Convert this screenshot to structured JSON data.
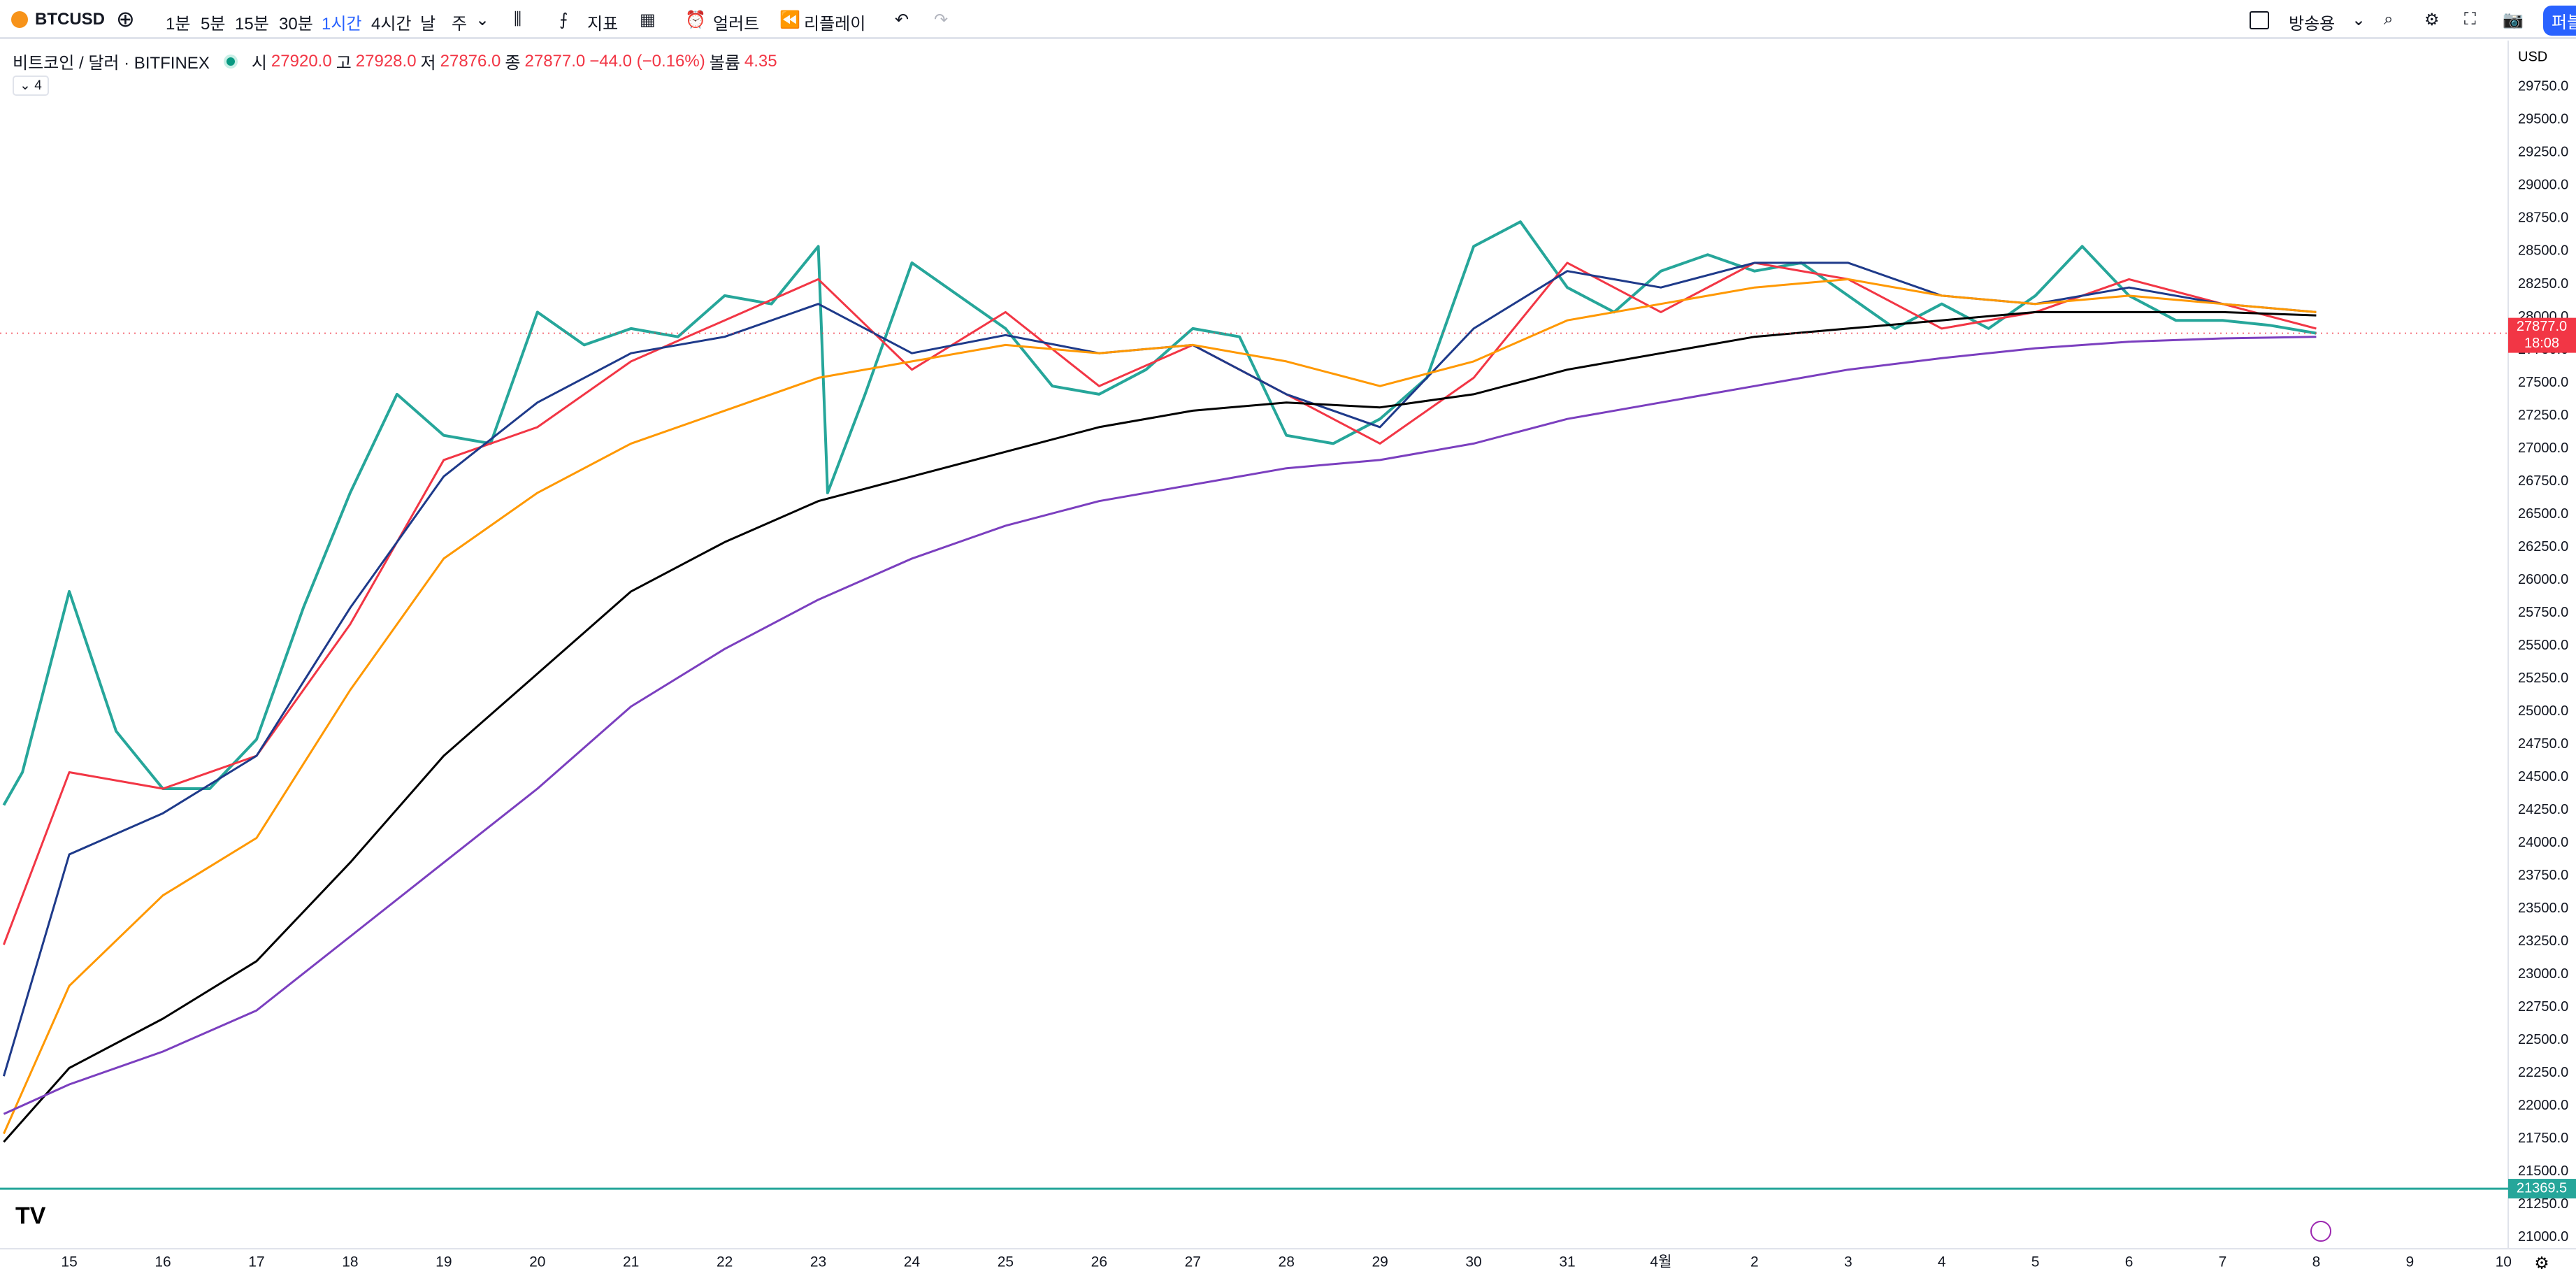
{
  "toolbar": {
    "symbol": "BTCUSD",
    "intervals": [
      "1분",
      "5분",
      "15분",
      "30분",
      "1시간",
      "4시간",
      "날",
      "주"
    ],
    "indicators": "지표",
    "alert": "얼러트",
    "replay": "리플레이",
    "layout": "방송용",
    "publish": "퍼블"
  },
  "legend": {
    "title": "비트코인 / 달러 · BITFINEX",
    "open_label": "시",
    "open": "27920.0",
    "high_label": "고",
    "high": "27928.0",
    "low_label": "저",
    "low": "27876.0",
    "close_label": "종",
    "close": "27877.0",
    "change": "−44.0 (−0.16%)",
    "volume_label": "볼륨",
    "volume": "4.35",
    "indicator_count": "4"
  },
  "chart_data": {
    "type": "line",
    "currency": "USD",
    "x": [
      -0.7,
      0,
      1,
      2,
      3,
      4,
      5,
      6,
      7,
      8,
      9,
      10,
      11,
      12,
      13,
      14,
      15,
      16,
      17,
      18,
      19,
      20,
      21,
      22,
      23,
      24
    ],
    "series": [
      {
        "color": "#26a69a",
        "x": [
          -0.7,
          -0.5,
          0,
          0.5,
          1,
          1.5,
          2,
          2.5,
          3,
          3.5,
          4,
          4.5,
          5,
          5.5,
          6,
          6.5,
          7,
          7.5,
          8,
          8.1,
          8.5,
          9,
          9.5,
          10,
          10.5,
          11,
          11.5,
          12,
          12.5,
          13,
          13.5,
          14,
          14.5,
          15,
          15.5,
          16,
          16.5,
          17,
          17.5,
          18,
          18.5,
          19,
          19.5,
          20,
          20.5,
          21,
          21.5,
          22,
          22.5,
          23,
          23.5,
          24
        ],
        "values": [
          24287.5,
          24537.5,
          25912.5,
          24850,
          24412.5,
          24412.5,
          24787.5,
          25787.5,
          26662.5,
          27412.5,
          27100,
          27037.5,
          28037.5,
          27787.5,
          27912.5,
          27850,
          28162.5,
          28100,
          28537.5,
          26662.5,
          27412.5,
          28412.5,
          28162.5,
          27912.5,
          27475,
          27412.5,
          27600,
          27912.5,
          27850,
          27100,
          27037.5,
          27225,
          27537.5,
          28537.5,
          28725,
          28225,
          28037.5,
          28350,
          28475,
          28350,
          28412.5,
          28162.5,
          27912.5,
          28100,
          27912.5,
          28162.5,
          28537.5,
          28162.5,
          27975,
          27975,
          27937.5,
          27877
        ]
      },
      {
        "color": "#f23645",
        "values": [
          23225,
          24537.5,
          24412.5,
          24662.5,
          25662.5,
          26912.5,
          27162.5,
          27662.5,
          27975,
          28287.5,
          27600,
          28037.5,
          27475,
          27787.5,
          27412.5,
          27037.5,
          27537.5,
          28412.5,
          28037.5,
          28412.5,
          28287.5,
          27912.5,
          28037.5,
          28287.5,
          28100,
          27912.5
        ]
      },
      {
        "color": "#1e3a8a",
        "values": [
          22225,
          23912.5,
          24225,
          24662.5,
          25787.5,
          26787.5,
          27350,
          27725,
          27850,
          28100,
          27725,
          27862.5,
          27725,
          27787.5,
          27412.5,
          27162.5,
          27912.5,
          28350,
          28225,
          28412.5,
          28412.5,
          28162.5,
          28100,
          28225,
          28100,
          28037.5
        ]
      },
      {
        "color": "#ff9800",
        "values": [
          21787.5,
          22912.5,
          23600,
          24037.5,
          25162.5,
          26162.5,
          26662.5,
          27037.5,
          27287.5,
          27537.5,
          27662.5,
          27787.5,
          27725,
          27787.5,
          27662.5,
          27475,
          27662.5,
          27975,
          28100,
          28225,
          28287.5,
          28162.5,
          28100,
          28162.5,
          28100,
          28037.5
        ]
      },
      {
        "color": "#000000",
        "values": [
          21725,
          22287.5,
          22662.5,
          23100,
          23850,
          24662.5,
          25287.5,
          25912.5,
          26287.5,
          26600,
          26787.5,
          26975,
          27162.5,
          27287.5,
          27350,
          27312.5,
          27412.5,
          27600,
          27725,
          27850,
          27912.5,
          27975,
          28037.5,
          28037.5,
          28037.5,
          28012.5
        ]
      },
      {
        "color": "#7b3fbf",
        "values": [
          21937.5,
          22162.5,
          22412.5,
          22725,
          23287.5,
          23850,
          24412.5,
          25037.5,
          25475,
          25850,
          26162.5,
          26412.5,
          26600,
          26725,
          26850,
          26912.5,
          27037.5,
          27225,
          27350,
          27475,
          27600,
          27687.5,
          27762.5,
          27812.5,
          27837.5,
          27850
        ]
      }
    ],
    "xlim": [
      -0.74,
      26.05
    ],
    "xticks": [
      {
        "value": 0,
        "label": "15"
      },
      {
        "value": 1,
        "label": "16"
      },
      {
        "value": 2,
        "label": "17"
      },
      {
        "value": 3,
        "label": "18"
      },
      {
        "value": 4,
        "label": "19"
      },
      {
        "value": 5,
        "label": "20"
      },
      {
        "value": 6,
        "label": "21"
      },
      {
        "value": 7,
        "label": "22"
      },
      {
        "value": 8,
        "label": "23"
      },
      {
        "value": 9,
        "label": "24"
      },
      {
        "value": 10,
        "label": "25"
      },
      {
        "value": 11,
        "label": "26"
      },
      {
        "value": 12,
        "label": "27"
      },
      {
        "value": 13,
        "label": "28"
      },
      {
        "value": 14,
        "label": "29"
      },
      {
        "value": 15,
        "label": "30"
      },
      {
        "value": 16,
        "label": "31"
      },
      {
        "value": 17,
        "label": "4월"
      },
      {
        "value": 18,
        "label": "2"
      },
      {
        "value": 19,
        "label": "3"
      },
      {
        "value": 20,
        "label": "4"
      },
      {
        "value": 21,
        "label": "5"
      },
      {
        "value": 22,
        "label": "6"
      },
      {
        "value": 23,
        "label": "7"
      },
      {
        "value": 24,
        "label": "8"
      },
      {
        "value": 25,
        "label": "9"
      },
      {
        "value": 26,
        "label": "10"
      }
    ],
    "ylim": [
      20912.5,
      30087.5
    ],
    "yticks": [
      {
        "value": 21000,
        "label": "21000.0"
      },
      {
        "value": 21250,
        "label": "21250.0"
      },
      {
        "value": 21500,
        "label": "21500.0"
      },
      {
        "value": 21750,
        "label": "21750.0"
      },
      {
        "value": 22000,
        "label": "22000.0"
      },
      {
        "value": 22250,
        "label": "22250.0"
      },
      {
        "value": 22500,
        "label": "22500.0"
      },
      {
        "value": 22750,
        "label": "22750.0"
      },
      {
        "value": 23000,
        "label": "23000.0"
      },
      {
        "value": 23250,
        "label": "23250.0"
      },
      {
        "value": 23500,
        "label": "23500.0"
      },
      {
        "value": 23750,
        "label": "23750.0"
      },
      {
        "value": 24000,
        "label": "24000.0"
      },
      {
        "value": 24250,
        "label": "24250.0"
      },
      {
        "value": 24500,
        "label": "24500.0"
      },
      {
        "value": 24750,
        "label": "24750.0"
      },
      {
        "value": 25000,
        "label": "25000.0"
      },
      {
        "value": 25250,
        "label": "25250.0"
      },
      {
        "value": 25500,
        "label": "25500.0"
      },
      {
        "value": 25750,
        "label": "25750.0"
      },
      {
        "value": 26000,
        "label": "26000.0"
      },
      {
        "value": 26250,
        "label": "26250.0"
      },
      {
        "value": 26500,
        "label": "26500.0"
      },
      {
        "value": 26750,
        "label": "26750.0"
      },
      {
        "value": 27000,
        "label": "27000.0"
      },
      {
        "value": 27250,
        "label": "27250.0"
      },
      {
        "value": 27500,
        "label": "27500.0"
      },
      {
        "value": 27750,
        "label": "27750.0"
      },
      {
        "value": 28000,
        "label": "28000.0"
      },
      {
        "value": 28250,
        "label": "28250.0"
      },
      {
        "value": 28500,
        "label": "28500.0"
      },
      {
        "value": 28750,
        "label": "28750.0"
      },
      {
        "value": 29000,
        "label": "29000.0"
      },
      {
        "value": 29250,
        "label": "29250.0"
      },
      {
        "value": 29500,
        "label": "29500.0"
      },
      {
        "value": 29750,
        "label": "29750.0"
      }
    ],
    "grid": false,
    "hline": {
      "value": 21369.5,
      "color": "#26a69a"
    },
    "last_price": {
      "value": 27877,
      "label": "27877.0",
      "countdown": "18:08",
      "color": "#f23645"
    }
  }
}
